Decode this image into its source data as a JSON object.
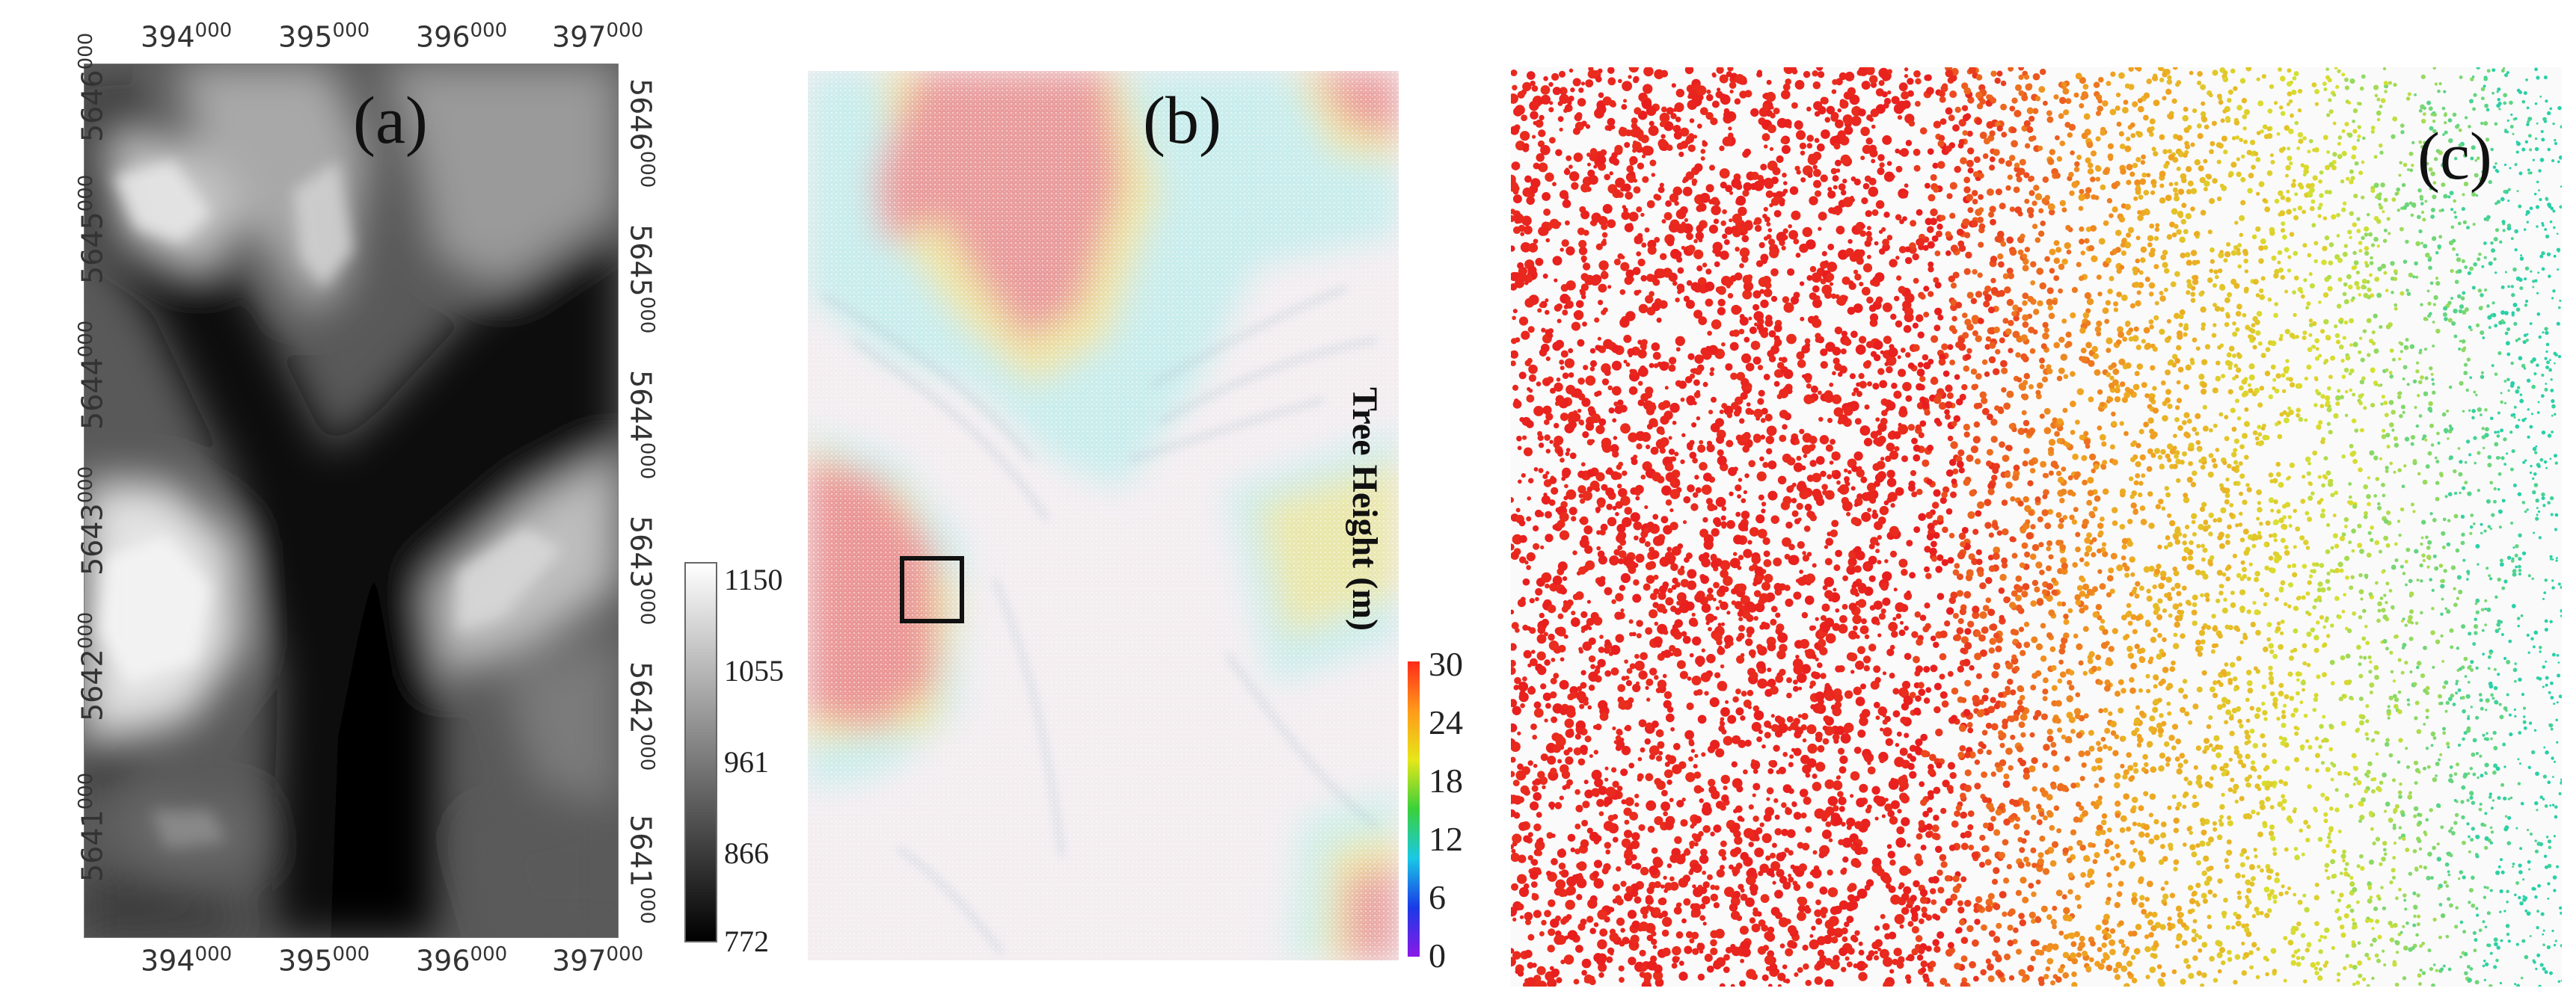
{
  "panels": {
    "a": {
      "label": "(a)",
      "x_ticks": [
        "394000",
        "395000",
        "396000",
        "397000"
      ],
      "y_ticks": [
        "5646000",
        "5645000",
        "5644000",
        "5643000",
        "5642000",
        "5641000"
      ],
      "colorbar": {
        "labels": [
          "1150",
          "1055",
          "961",
          "866",
          "772"
        ],
        "min": 772,
        "max": 1150,
        "colors": [
          "#ffffff",
          "#000000"
        ]
      }
    },
    "b": {
      "label": "(b)",
      "colorbar": {
        "title": "Tree Height (m)",
        "labels": [
          "30",
          "24",
          "18",
          "12",
          "6",
          "0"
        ],
        "min": 0,
        "max": 30,
        "colors": [
          "#ff2a1a",
          "#ff9a1a",
          "#e6e61a",
          "#3ad03a",
          "#1ac8e6",
          "#1a3ae6",
          "#8a1ae6"
        ]
      }
    },
    "c": {
      "label": "(c)",
      "colors": [
        "#e81e1e",
        "#f0a020",
        "#d8e030",
        "#2ad0a8"
      ]
    }
  }
}
